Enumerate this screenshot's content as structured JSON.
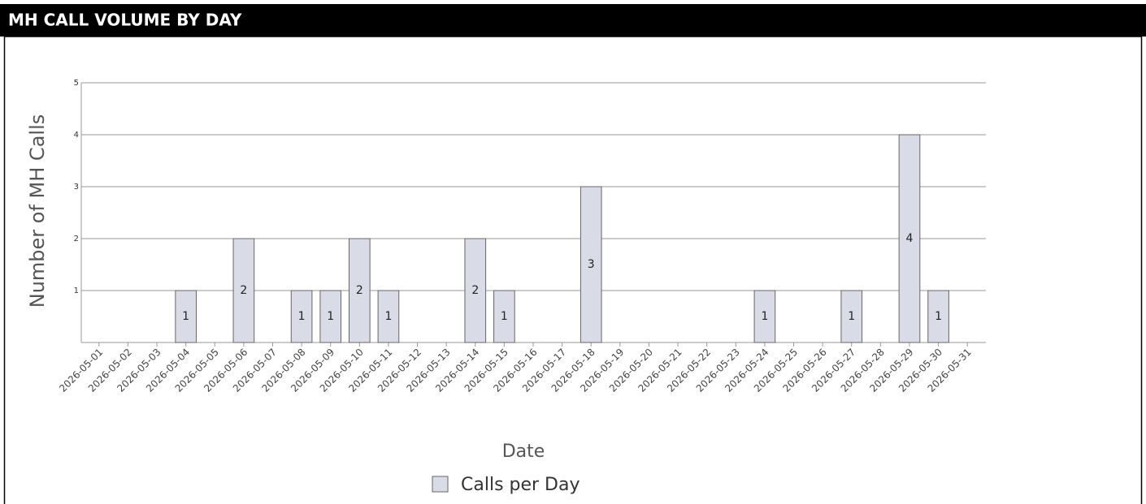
{
  "chart_data": {
    "type": "bar",
    "title": "MH CALL VOLUME BY DAY",
    "x_label": "Date",
    "y_label": "Number of MH Calls",
    "categories": [
      "2026-05-01",
      "2026-05-02",
      "2026-05-03",
      "2026-05-04",
      "2026-05-05",
      "2026-05-06",
      "2026-05-07",
      "2026-05-08",
      "2026-05-09",
      "2026-05-10",
      "2026-05-11",
      "2026-05-12",
      "2026-05-13",
      "2026-05-14",
      "2026-05-15",
      "2026-05-16",
      "2026-05-17",
      "2026-05-18",
      "2026-05-19",
      "2026-05-20",
      "2026-05-21",
      "2026-05-22",
      "2026-05-23",
      "2026-05-24",
      "2026-05-25",
      "2026-05-26",
      "2026-05-27",
      "2026-05-28",
      "2026-05-29",
      "2026-05-30",
      "2026-05-31"
    ],
    "series": [
      {
        "name": "Calls per Day",
        "color": "#d9dce6",
        "values": [
          0,
          0,
          0,
          1,
          0,
          2,
          0,
          1,
          1,
          2,
          1,
          0,
          0,
          2,
          1,
          0,
          0,
          3,
          0,
          0,
          0,
          0,
          0,
          1,
          0,
          0,
          1,
          0,
          4,
          1,
          0
        ]
      }
    ],
    "ylim": [
      0,
      5
    ],
    "yticks": [
      1,
      2,
      3,
      4,
      5
    ],
    "grid": true,
    "legend": "bottom"
  }
}
